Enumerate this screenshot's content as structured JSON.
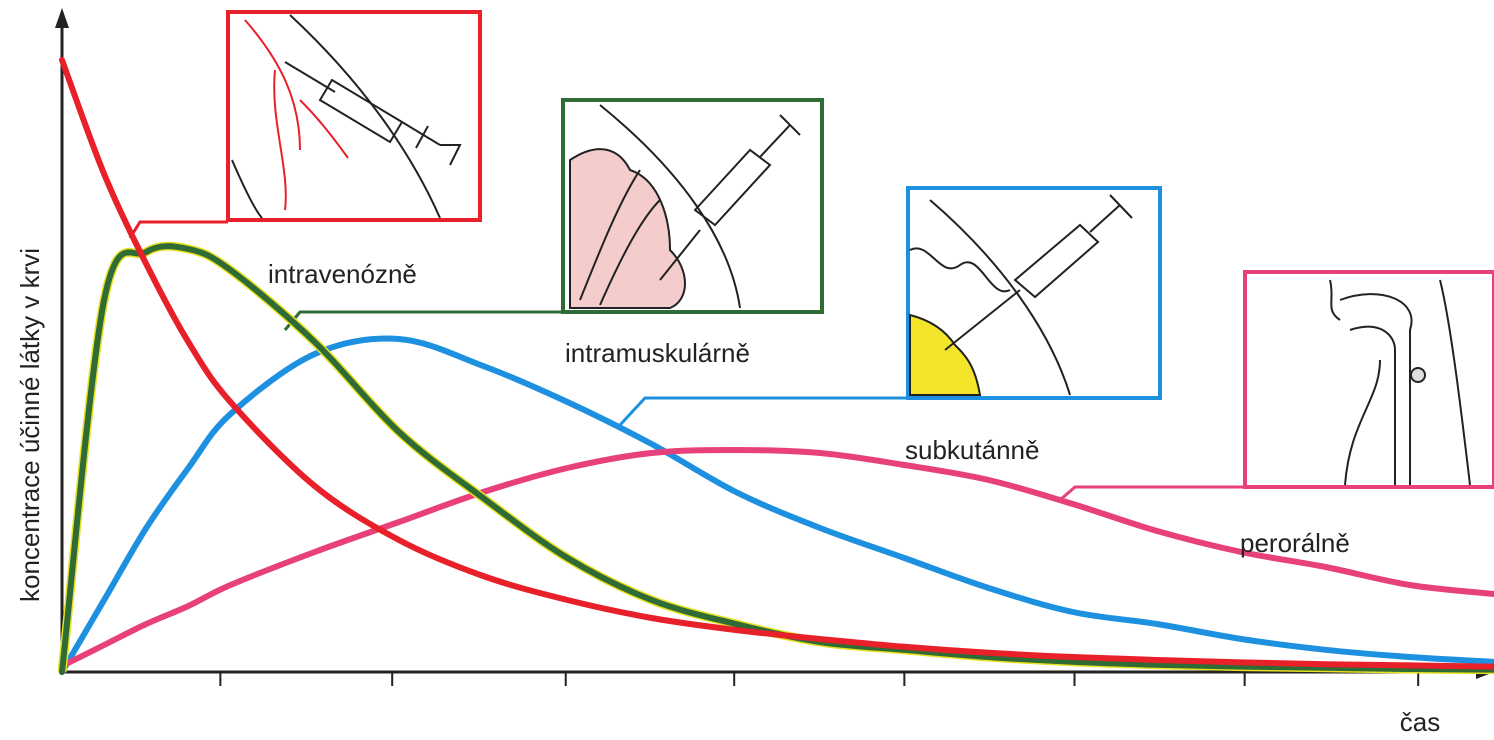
{
  "chart_data": {
    "type": "line",
    "y_label": "koncentrace účinné látky v krvi",
    "x_label": "čas",
    "x": [
      0,
      0.25,
      0.5,
      0.75,
      1,
      1.5,
      2,
      2.5,
      3,
      3.5,
      4,
      4.5,
      5,
      5.5,
      6,
      6.5,
      7,
      7.5,
      8,
      8.5
    ],
    "xlim": [
      0,
      8.5
    ],
    "ylim": [
      0,
      11
    ],
    "xticks": [
      0.94,
      1.96,
      2.99,
      3.99,
      5,
      6.01,
      7.02,
      8.05
    ],
    "series": [
      {
        "name": "intravenózně",
        "color": "#e8202a",
        "values": [
          10.2,
          8.3,
          6.8,
          5.5,
          4.5,
          3.1,
          2.2,
          1.6,
          1.2,
          0.9,
          0.7,
          0.55,
          0.42,
          0.32,
          0.25,
          0.2,
          0.16,
          0.13,
          0.11,
          0.09
        ]
      },
      {
        "name": "intramuskulárně",
        "color": "#2e6b35",
        "values": [
          0,
          6.2,
          7.0,
          7.05,
          6.7,
          5.5,
          4.0,
          2.9,
          1.9,
          1.2,
          0.8,
          0.5,
          0.37,
          0.25,
          0.17,
          0.12,
          0.09,
          0.07,
          0.05,
          0.04
        ]
      },
      {
        "name": "subkutánně",
        "color": "#1e90e0",
        "values": [
          0,
          1.2,
          2.4,
          3.4,
          4.3,
          5.3,
          5.55,
          5.1,
          4.5,
          3.8,
          3.0,
          2.4,
          1.9,
          1.4,
          1.0,
          0.8,
          0.55,
          0.37,
          0.25,
          0.17
        ]
      },
      {
        "name": "perorálně",
        "color": "#e8407a",
        "values": [
          0.1,
          0.45,
          0.8,
          1.1,
          1.45,
          2.0,
          2.5,
          3.0,
          3.4,
          3.65,
          3.7,
          3.65,
          3.45,
          3.2,
          2.8,
          2.35,
          2.0,
          1.75,
          1.45,
          1.3
        ]
      }
    ]
  }
}
